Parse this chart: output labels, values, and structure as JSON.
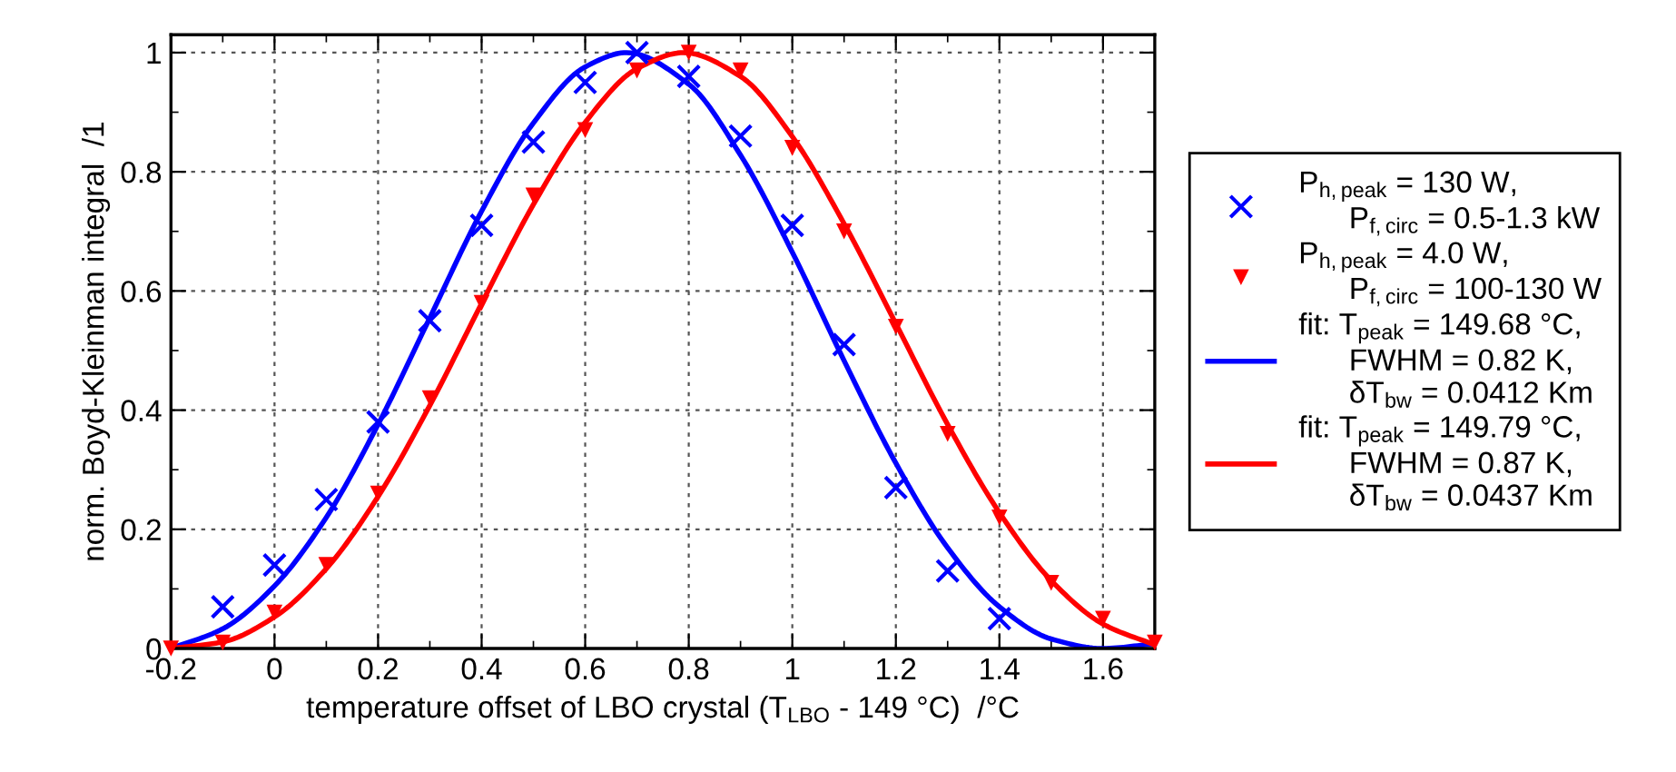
{
  "chart_data": {
    "type": "scatter",
    "xlabel": "temperature offset of LBO crystal (T$_{LBO}$ - 149 °C)  /°C",
    "ylabel": "norm. Boyd-Kleinman integral  /1",
    "xlim": [
      -0.2,
      1.7
    ],
    "ylim": [
      0,
      1.03
    ],
    "xticks": [
      -0.2,
      0,
      0.2,
      0.4,
      0.6,
      0.8,
      1,
      1.2,
      1.4,
      1.6
    ],
    "yticks": [
      0,
      0.2,
      0.4,
      0.6,
      0.8,
      1
    ],
    "grid": true,
    "legend": "right",
    "series": [
      {
        "name": "P$_{h,peak}$ = 130 W,\n      P$_{f,circ}$ = 0.5-1.3 kW",
        "marker": "cross",
        "color": "#0000ff",
        "x": [
          -0.1,
          0,
          0.1,
          0.2,
          0.3,
          0.4,
          0.5,
          0.6,
          0.7,
          0.8,
          0.9,
          1.0,
          1.1,
          1.2,
          1.3,
          1.4
        ],
        "values": [
          0.07,
          0.14,
          0.25,
          0.38,
          0.55,
          0.71,
          0.85,
          0.95,
          1.0,
          0.96,
          0.86,
          0.71,
          0.51,
          0.27,
          0.13,
          0.05
        ]
      },
      {
        "name": "P$_{h,peak}$ = 4.0 W,\n      P$_{f,circ}$ = 100-130 W",
        "marker": "triangle",
        "color": "#ff0000",
        "x": [
          -0.2,
          -0.1,
          0,
          0.1,
          0.2,
          0.3,
          0.4,
          0.5,
          0.6,
          0.7,
          0.8,
          0.9,
          1.0,
          1.1,
          1.2,
          1.3,
          1.4,
          1.5,
          1.6,
          1.7
        ],
        "values": [
          0.0,
          0.01,
          0.06,
          0.14,
          0.26,
          0.42,
          0.58,
          0.76,
          0.87,
          0.97,
          1.0,
          0.97,
          0.84,
          0.7,
          0.54,
          0.36,
          0.22,
          0.11,
          0.05,
          0.01
        ]
      },
      {
        "name": "fit: T$_{peak}$ = 149.68 °C,\n      FWHM = 0.82 K,\n      δT$_{bw}$ = 0.0412 Km",
        "type": "line",
        "line_style": "solid",
        "color": "#0000ff",
        "x": [
          -0.2,
          -0.1,
          0,
          0.1,
          0.2,
          0.3,
          0.4,
          0.5,
          0.6,
          0.68,
          0.8,
          0.9,
          1.0,
          1.1,
          1.2,
          1.3,
          1.4,
          1.5,
          1.6,
          1.7
        ],
        "values": [
          0.0,
          0.033,
          0.105,
          0.22,
          0.376,
          0.555,
          0.734,
          0.882,
          0.976,
          1.0,
          0.947,
          0.828,
          0.665,
          0.483,
          0.311,
          0.169,
          0.07,
          0.016,
          0.0,
          0.008
        ]
      },
      {
        "name": "fit: T$_{peak}$ = 149.79 °C,\n      FWHM = 0.87 K,\n      δT$_{bw}$ = 0.0437 Km",
        "type": "line",
        "line_style": "solid",
        "color": "#ff0000",
        "x": [
          -0.2,
          -0.1,
          0,
          0.1,
          0.2,
          0.3,
          0.4,
          0.5,
          0.6,
          0.7,
          0.79,
          0.9,
          1.0,
          1.1,
          1.2,
          1.3,
          1.4,
          1.5,
          1.6,
          1.7
        ],
        "values": [
          0.0,
          0.011,
          0.053,
          0.134,
          0.255,
          0.408,
          0.579,
          0.745,
          0.883,
          0.973,
          1.0,
          0.96,
          0.859,
          0.713,
          0.545,
          0.376,
          0.228,
          0.114,
          0.041,
          0.006
        ]
      }
    ]
  }
}
